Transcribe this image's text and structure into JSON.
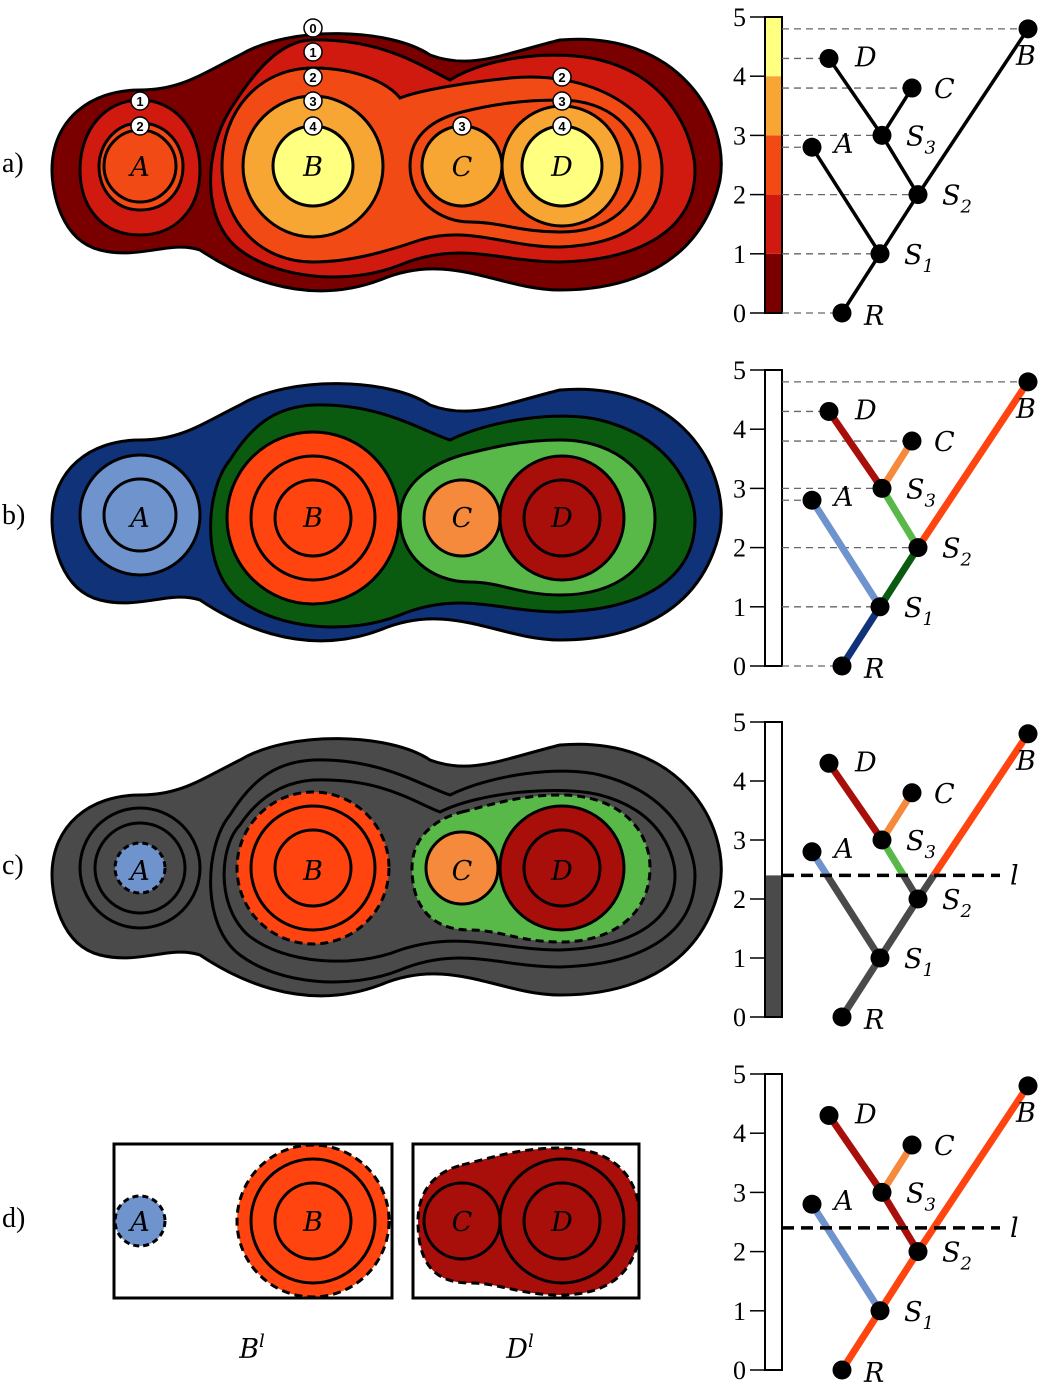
{
  "panels": [
    {
      "label": "a)"
    },
    {
      "label": "b)"
    },
    {
      "label": "c)"
    },
    {
      "label": "d)"
    }
  ],
  "scale_ticks": [
    "0",
    "1",
    "2",
    "3",
    "4",
    "5"
  ],
  "nodes": {
    "A": "A",
    "B": "B",
    "C": "C",
    "D": "D",
    "S": "S",
    "S1_sub": "1",
    "S2_sub": "2",
    "S3_sub": "3",
    "R": "R"
  },
  "level_line_label": "l",
  "level_badges": {
    "A": [
      "1",
      "2"
    ],
    "B": [
      "0",
      "1",
      "2",
      "3",
      "4"
    ],
    "C": [
      "3"
    ],
    "D": [
      "2",
      "3",
      "4"
    ]
  },
  "crop_labels": {
    "left": {
      "base": "B",
      "sup": "l"
    },
    "right": {
      "base": "D",
      "sup": "l"
    }
  },
  "colors": {
    "a": {
      "level0": "#7a0000",
      "level1": "#d01a10",
      "level2": "#f24a14",
      "level3": "#f7a634",
      "level4": "#ffff80"
    },
    "b": {
      "R": "#0f3278",
      "S1": "#0a5a10",
      "S2": "#58b848",
      "A": "#6f93cd",
      "B": "#ff4410",
      "C": "#f58a3c",
      "D": "#a80e0a"
    },
    "c": {
      "gray": "#4a4a4a"
    }
  }
}
